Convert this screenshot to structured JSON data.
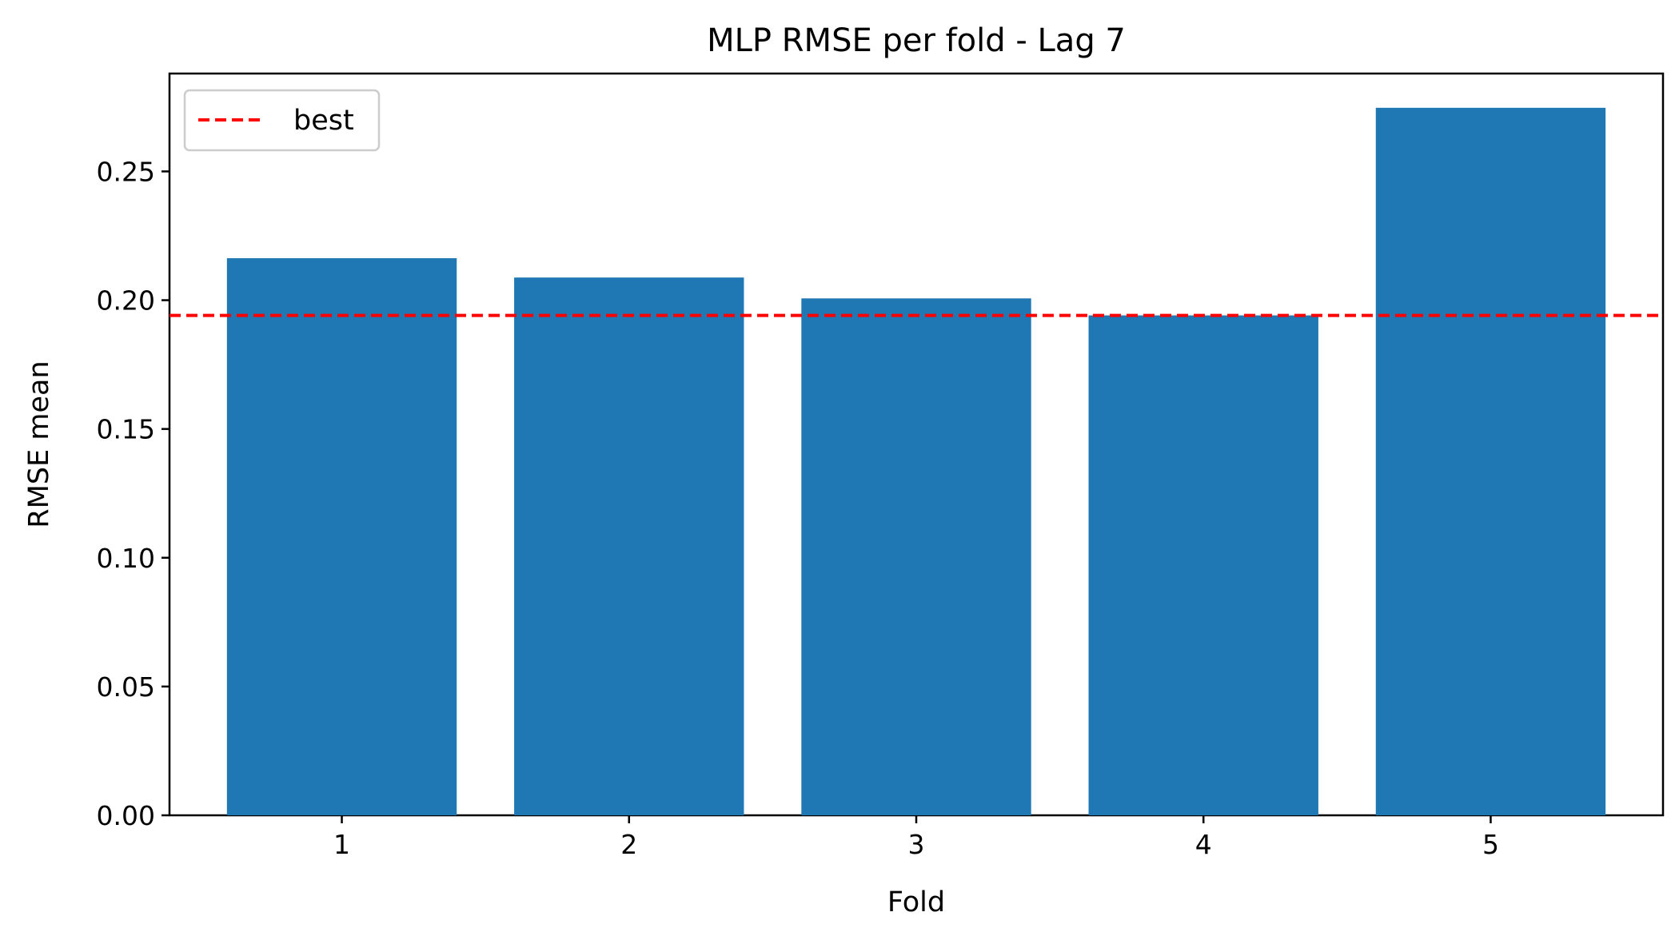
{
  "chart_data": {
    "type": "bar",
    "title": "MLP RMSE per fold - Lag 7",
    "xlabel": "Fold",
    "ylabel": "RMSE mean",
    "categories": [
      "1",
      "2",
      "3",
      "4",
      "5"
    ],
    "values": [
      0.2163,
      0.2088,
      0.2007,
      0.1941,
      0.2747
    ],
    "ylim": [
      0,
      0.288
    ],
    "yticks": [
      0.0,
      0.05,
      0.1,
      0.15,
      0.2,
      0.25
    ],
    "ytick_labels": [
      "0.00",
      "0.05",
      "0.10",
      "0.15",
      "0.20",
      "0.25"
    ],
    "reference_line": {
      "label": "best",
      "value": 0.1941,
      "style": "dashed"
    },
    "legend": {
      "entries": [
        "best"
      ],
      "placement": "upper-left"
    },
    "grid": false,
    "colors": {
      "bar": "#1f77b4",
      "reference_line": "#ff0000"
    }
  }
}
